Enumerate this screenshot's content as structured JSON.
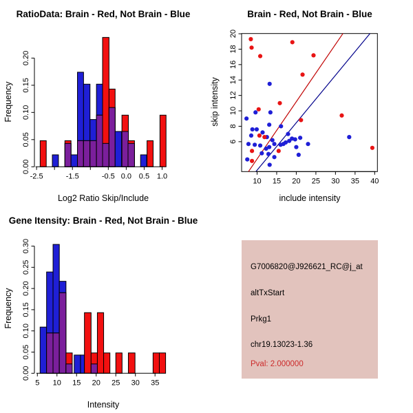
{
  "window": {
    "background": "#ffffff"
  },
  "colors": {
    "bar_red": "#f21010",
    "bar_blue": "#1f1fd6",
    "overlap_purple": "#7b1f9c",
    "axis_black": "#000000",
    "scatter_red_point": "#e81414",
    "scatter_blue_point": "#1f1fd6",
    "red_fit_line": "#c00000",
    "blue_fit_line": "#00008b",
    "info_background": "#e2c3bd",
    "pval_red": "#cc2a2a",
    "info_text": "#000000"
  },
  "chart_data": [
    {
      "type": "bar",
      "subtype": "overlaid-histograms",
      "title": "RatioData: Brain - Red, Not Brain - Blue",
      "xlabel": "Log2 Ratio Skip/Include",
      "ylabel": "Frequency",
      "legend": {
        "Brain": "red",
        "Not Brain": "blue"
      },
      "xlim": [
        -2.56,
        1.24
      ],
      "ylim": [
        0,
        0.241
      ],
      "grid": false,
      "x_ticks": [
        -2.5,
        -2.0,
        -1.5,
        -1.0,
        -0.5,
        0.0,
        0.5,
        1.0
      ],
      "x_tick_labels": [
        "-2.5",
        "",
        "-1.5",
        "",
        "-0.5",
        "0.0",
        "0.5",
        "1.0"
      ],
      "y_ticks": [
        0,
        0.05,
        0.1,
        0.15,
        0.2
      ],
      "y_tick_labels": [
        "0.00",
        "0.05",
        "0.10",
        "0.15",
        "0.20"
      ],
      "bars": [
        {
          "x0": -2.4,
          "x1": -2.23,
          "red": 0.048,
          "blue": 0
        },
        {
          "x0": -2.06,
          "x1": -1.89,
          "red": 0,
          "blue": 0.022
        },
        {
          "x0": -1.71,
          "x1": -1.54,
          "red": 0.048,
          "blue": 0.043
        },
        {
          "x0": -1.54,
          "x1": -1.36,
          "red": 0,
          "blue": 0.022
        },
        {
          "x0": -1.36,
          "x1": -1.19,
          "red": 0.048,
          "blue": 0.174
        },
        {
          "x0": -1.19,
          "x1": -1.01,
          "red": 0.048,
          "blue": 0.152
        },
        {
          "x0": -1.01,
          "x1": -0.83,
          "red": 0.048,
          "blue": 0.087
        },
        {
          "x0": -0.83,
          "x1": -0.66,
          "red": 0.095,
          "blue": 0.152
        },
        {
          "x0": -0.66,
          "x1": -0.48,
          "red": 0.238,
          "blue": 0.043
        },
        {
          "x0": -0.48,
          "x1": -0.31,
          "red": 0.143,
          "blue": 0.109
        },
        {
          "x0": -0.31,
          "x1": -0.13,
          "red": 0,
          "blue": 0.065
        },
        {
          "x0": -0.12,
          "x1": 0.06,
          "red": 0.095,
          "blue": 0.065
        },
        {
          "x0": 0.05,
          "x1": 0.23,
          "red": 0.048,
          "blue": 0.043
        },
        {
          "x0": 0.4,
          "x1": 0.57,
          "red": 0,
          "blue": 0.022
        },
        {
          "x0": 0.58,
          "x1": 0.75,
          "red": 0.048,
          "blue": 0
        },
        {
          "x0": 0.94,
          "x1": 1.11,
          "red": 0.095,
          "blue": 0
        }
      ]
    },
    {
      "type": "scatter",
      "title": "Brain - Red, Not Brain - Blue",
      "xlabel": "include intensity",
      "ylabel": "skip intensity",
      "legend": {
        "Brain": "red",
        "Not Brain": "blue"
      },
      "xlim": [
        6.05,
        40.7
      ],
      "ylim": [
        2.12,
        20.03
      ],
      "grid": false,
      "x_ticks": [
        10,
        15,
        20,
        25,
        30,
        35,
        40
      ],
      "x_tick_labels": [
        "10",
        "15",
        "20",
        "25",
        "30",
        "35",
        "40"
      ],
      "y_ticks": [
        6,
        8,
        10,
        12,
        14,
        16,
        18,
        20
      ],
      "y_tick_labels": [
        "6",
        "8",
        "10",
        "12",
        "14",
        "16",
        "18",
        "20"
      ],
      "red_points": [
        [
          8.4,
          19.3
        ],
        [
          8.6,
          18.2
        ],
        [
          10.8,
          17.1
        ],
        [
          19.0,
          18.9
        ],
        [
          24.4,
          17.2
        ],
        [
          21.6,
          14.7
        ],
        [
          15.8,
          11.0
        ],
        [
          10.4,
          10.2
        ],
        [
          31.6,
          9.4
        ],
        [
          21.2,
          8.8
        ],
        [
          39.4,
          5.2
        ],
        [
          10.6,
          6.8
        ],
        [
          11.9,
          6.6
        ],
        [
          8.7,
          4.8
        ],
        [
          15.5,
          4.8
        ],
        [
          8.7,
          3.5
        ]
      ],
      "blue_points": [
        [
          13.2,
          13.5
        ],
        [
          7.3,
          9.0
        ],
        [
          9.6,
          9.8
        ],
        [
          13.4,
          9.8
        ],
        [
          13.1,
          8.2
        ],
        [
          8.8,
          7.6
        ],
        [
          9.9,
          7.6
        ],
        [
          11.4,
          7.2
        ],
        [
          8.5,
          6.8
        ],
        [
          12.5,
          6.6
        ],
        [
          13.9,
          6.2
        ],
        [
          16.1,
          8.0
        ],
        [
          7.8,
          5.7
        ],
        [
          9.4,
          5.6
        ],
        [
          10.8,
          5.5
        ],
        [
          12.3,
          5.1
        ],
        [
          13.1,
          5.3
        ],
        [
          14.4,
          5.7
        ],
        [
          12.9,
          4.4
        ],
        [
          11.2,
          4.5
        ],
        [
          14.4,
          4.0
        ],
        [
          7.5,
          3.7
        ],
        [
          13.2,
          3.0
        ],
        [
          17.9,
          7.0
        ],
        [
          18.9,
          6.4
        ],
        [
          18.2,
          6.1
        ],
        [
          17.3,
          5.9
        ],
        [
          16.7,
          5.7
        ],
        [
          16.0,
          5.6
        ],
        [
          19.7,
          6.3
        ],
        [
          21.0,
          6.5
        ],
        [
          23.0,
          5.7
        ],
        [
          20.0,
          5.3
        ],
        [
          20.6,
          4.3
        ],
        [
          33.5,
          6.6
        ]
      ],
      "red_line": {
        "x1": 7.8,
        "y1": 2.12,
        "x2": 31.9,
        "y2": 20.03
      },
      "blue_line": {
        "x1": 9.7,
        "y1": 2.12,
        "x2": 38.8,
        "y2": 20.03
      }
    },
    {
      "type": "bar",
      "subtype": "overlaid-histograms",
      "title": "Gene Itensity: Brain - Red, Not Brain - Blue",
      "xlabel": "Intensity",
      "ylabel": "Frequency",
      "legend": {
        "Brain": "red",
        "Not Brain": "blue"
      },
      "xlim": [
        4.25,
        39.0
      ],
      "ylim": [
        0,
        0.309
      ],
      "grid": false,
      "x_ticks": [
        5,
        10,
        15,
        20,
        25,
        30,
        35
      ],
      "x_tick_labels": [
        "5",
        "10",
        "15",
        "20",
        "25",
        "30",
        "35"
      ],
      "y_ticks": [
        0,
        0.05,
        0.1,
        0.15,
        0.2,
        0.25,
        0.3
      ],
      "y_tick_labels": [
        "0.00",
        "0.05",
        "0.10",
        "0.15",
        "0.20",
        "0.25",
        "0.30"
      ],
      "bars": [
        {
          "x0": 5.7,
          "x1": 7.35,
          "red": 0,
          "blue": 0.109
        },
        {
          "x0": 7.35,
          "x1": 9.0,
          "red": 0.095,
          "blue": 0.239
        },
        {
          "x0": 9.0,
          "x1": 10.6,
          "red": 0.095,
          "blue": 0.304
        },
        {
          "x0": 10.6,
          "x1": 12.3,
          "red": 0.19,
          "blue": 0.217
        },
        {
          "x0": 12.3,
          "x1": 13.9,
          "red": 0.048,
          "blue": 0.022
        },
        {
          "x0": 14.4,
          "x1": 16.0,
          "red": 0,
          "blue": 0.043
        },
        {
          "x0": 16.0,
          "x1": 17.0,
          "red": 0,
          "blue": 0.043
        },
        {
          "x0": 17.0,
          "x1": 18.7,
          "red": 0.143,
          "blue": 0
        },
        {
          "x0": 18.7,
          "x1": 20.3,
          "red": 0.048,
          "blue": 0.022
        },
        {
          "x0": 20.3,
          "x1": 21.9,
          "red": 0.143,
          "blue": 0
        },
        {
          "x0": 21.9,
          "x1": 23.5,
          "red": 0.048,
          "blue": 0
        },
        {
          "x0": 25.0,
          "x1": 26.6,
          "red": 0.048,
          "blue": 0
        },
        {
          "x0": 28.2,
          "x1": 29.9,
          "red": 0.048,
          "blue": 0
        },
        {
          "x0": 34.5,
          "x1": 36.1,
          "red": 0.048,
          "blue": 0
        },
        {
          "x0": 36.1,
          "x1": 37.7,
          "red": 0.048,
          "blue": 0
        }
      ]
    }
  ],
  "info_panel": {
    "lines": [
      {
        "text": "G7006820@J926621_RC@j_at",
        "color": "#000000"
      },
      {
        "text": "altTxStart",
        "color": "#000000"
      },
      {
        "text": "Prkg1",
        "color": "#000000"
      },
      {
        "text": "chr19.13023-1.36",
        "color": "#000000"
      },
      {
        "text": "Pval: 2.000000",
        "color": "#cc2a2a"
      }
    ]
  }
}
